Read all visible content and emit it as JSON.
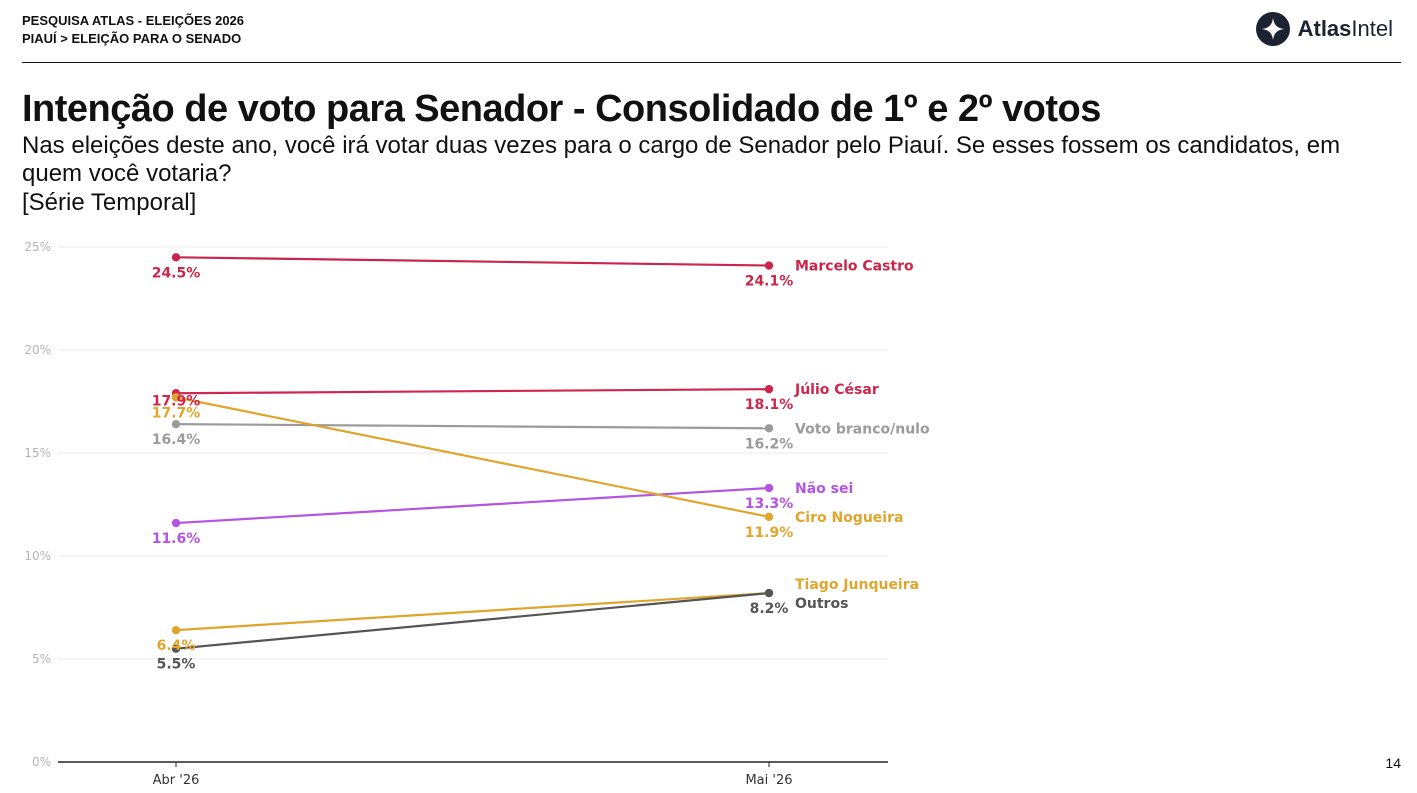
{
  "header": {
    "line1": "PESQUISA ATLAS - ELEIÇÕES 2026",
    "line2": "PIAUÍ > ELEIÇÃO PARA O SENADO"
  },
  "logo": {
    "icon": "atlasintel-logo-icon",
    "text_bold": "Atlas",
    "text_regular": "Intel"
  },
  "title": "Intenção de voto para Senador - Consolidado de 1º e 2º votos",
  "subtitle": "Nas eleições deste ano, você irá votar duas vezes para o cargo de Senador pelo Piauí. Se esses fossem os candidatos, em quem você votaria?",
  "series_note": "[Série Temporal]",
  "page_number": "14",
  "chart_data": {
    "type": "line",
    "x": [
      "Abr '26",
      "Mai '26"
    ],
    "ylim": [
      0,
      25
    ],
    "yticks": [
      0,
      5,
      10,
      15,
      20,
      25
    ],
    "ytick_labels": [
      "0%",
      "5%",
      "10%",
      "15%",
      "20%",
      "25%"
    ],
    "grid": true,
    "legend": "direct labels at right end of each line",
    "series": [
      {
        "name": "Marcelo Castro",
        "color": "#c8264a",
        "values": [
          24.5,
          24.1
        ],
        "labels": [
          "24.5%",
          "24.1%"
        ]
      },
      {
        "name": "Júlio César",
        "color": "#d0264e",
        "values": [
          17.9,
          18.1
        ],
        "labels": [
          "17.9%",
          "18.1%"
        ]
      },
      {
        "name": "Voto branco/nulo",
        "color": "#9b9b9b",
        "values": [
          16.4,
          16.2
        ],
        "labels": [
          "16.4%",
          "16.2%"
        ]
      },
      {
        "name": "Não sei",
        "color": "#b554e0",
        "values": [
          11.6,
          13.3
        ],
        "labels": [
          "11.6%",
          "13.3%"
        ]
      },
      {
        "name": "Ciro Nogueira",
        "color": "#e0a52c",
        "values": [
          17.7,
          11.9
        ],
        "labels": [
          "17.7%",
          "11.9%"
        ]
      },
      {
        "name": "Tiago Junqueira",
        "color": "#e0a52c",
        "values": [
          6.4,
          8.2
        ],
        "labels": [
          "6.4%",
          ""
        ]
      },
      {
        "name": "Outros",
        "color": "#555555",
        "values": [
          5.5,
          8.2
        ],
        "labels": [
          "5.5%",
          "8.2%"
        ]
      }
    ]
  }
}
